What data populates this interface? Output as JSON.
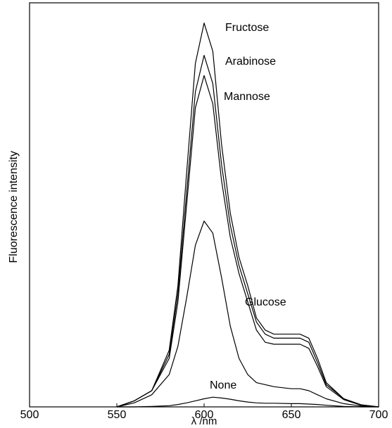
{
  "chart_data": {
    "type": "line",
    "x_label": "λ /nm",
    "y_label": "Fluorescence intensity",
    "x": [
      550,
      560,
      570,
      580,
      585,
      590,
      595,
      600,
      605,
      610,
      615,
      620,
      625,
      630,
      635,
      640,
      650,
      655,
      660,
      665,
      670,
      680,
      690,
      700
    ],
    "series": [
      {
        "name": "Fructose",
        "color": "#000000",
        "values": [
          0,
          1.5,
          4,
          14,
          30,
          58,
          85,
          95,
          88,
          65,
          48,
          37,
          30,
          22,
          19,
          18,
          18,
          18,
          17,
          12,
          6,
          2,
          0.5,
          0
        ]
      },
      {
        "name": "Arabinose",
        "color": "#000000",
        "values": [
          0,
          1.5,
          4,
          13,
          28,
          53,
          78,
          87,
          80,
          60,
          45,
          35,
          28,
          21,
          18,
          17,
          17,
          17,
          16,
          11,
          5.5,
          2,
          0.5,
          0
        ]
      },
      {
        "name": "Mannose",
        "color": "#000000",
        "values": [
          0,
          1.5,
          4,
          12,
          26,
          50,
          74,
          82,
          75,
          56,
          42,
          33,
          26,
          19,
          16,
          15.5,
          15.5,
          15.5,
          14.5,
          10,
          5,
          1.8,
          0.4,
          0
        ]
      },
      {
        "name": "Glucose",
        "color": "#000000",
        "values": [
          0,
          1,
          3,
          8,
          15,
          27,
          40,
          46,
          43,
          32,
          20,
          12,
          8,
          6,
          5.5,
          5,
          4.5,
          4.5,
          4,
          3,
          2,
          0.8,
          0.2,
          0
        ]
      },
      {
        "name": "None",
        "color": "#000000",
        "values": [
          0,
          0,
          0.1,
          0.3,
          0.6,
          1,
          1.5,
          2,
          2.4,
          2.2,
          1.9,
          1.5,
          1.2,
          1,
          0.9,
          0.9,
          0.8,
          0.8,
          0.7,
          0.6,
          0.4,
          0.1,
          0,
          0
        ]
      }
    ],
    "xlim": [
      500,
      700
    ],
    "xticks": [
      500,
      550,
      600,
      650,
      700
    ],
    "ylim": [
      0,
      100
    ]
  }
}
